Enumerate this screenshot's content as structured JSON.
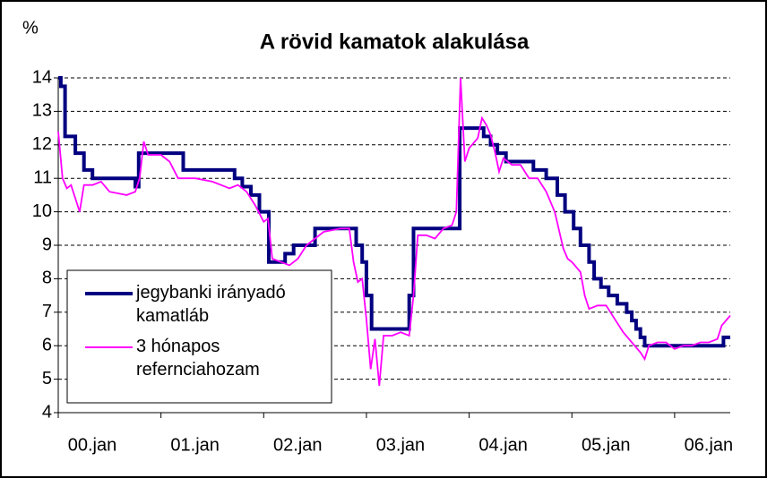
{
  "chart_data": {
    "type": "line",
    "title": "A rövid kamatok alakulása",
    "y_label": "%",
    "xlim": [
      0,
      78.5
    ],
    "xticks": [
      {
        "value": 0,
        "label": "00.jan"
      },
      {
        "value": 12,
        "label": "01.jan"
      },
      {
        "value": 24,
        "label": "02.jan"
      },
      {
        "value": 36,
        "label": "03.jan"
      },
      {
        "value": 48,
        "label": "04.jan"
      },
      {
        "value": 60,
        "label": "05.jan"
      },
      {
        "value": 72,
        "label": "06.jan"
      }
    ],
    "ylim": [
      4,
      14
    ],
    "yticks": [
      4,
      5,
      6,
      7,
      8,
      9,
      10,
      11,
      12,
      13,
      14
    ],
    "grid": true,
    "legend": "lower-left",
    "series": [
      {
        "name": "jegybanki irányadó kamatláb",
        "color": "#000080",
        "step": true,
        "x": [
          0,
          0.3,
          0.8,
          2,
          3,
          4,
          5,
          9,
          9.4,
          14.6,
          20.6,
          21.5,
          22.5,
          23.5,
          24.6,
          26.5,
          27.5,
          28.8,
          30,
          34.8,
          35.5,
          36,
          36.6,
          41,
          41.5,
          46.9,
          49.7,
          50.5,
          51.3,
          52.3,
          55.5,
          57,
          58.3,
          59.2,
          60.2,
          61,
          62,
          62.6,
          63.4,
          64.3,
          65.3,
          66.4,
          67,
          67.5,
          68,
          68.5,
          77.7,
          78.5
        ],
        "values": [
          14,
          13.75,
          12.25,
          11.75,
          11.25,
          11,
          11,
          10.75,
          11.75,
          11.25,
          11,
          10.75,
          10.5,
          10,
          8.5,
          8.75,
          9,
          9,
          9.5,
          9,
          8.5,
          7.5,
          6.5,
          7.5,
          9.5,
          12.5,
          12.25,
          12,
          11.75,
          11.5,
          11.25,
          11,
          10.5,
          10,
          9.5,
          9,
          8.5,
          8,
          7.75,
          7.5,
          7.25,
          7,
          6.75,
          6.5,
          6.25,
          6,
          6.25,
          6.25
        ]
      },
      {
        "name": "3 hónapos refernciahozam",
        "color": "#ff00ff",
        "x": [
          0,
          0.5,
          1,
          1.5,
          2.5,
          3,
          4,
          5,
          6,
          8,
          9,
          9.5,
          10,
          10.5,
          12,
          13,
          14,
          16,
          18,
          20,
          21,
          22,
          23,
          24,
          24.5,
          25,
          26,
          27,
          28,
          29,
          30,
          31,
          33,
          34,
          34.5,
          35,
          35.5,
          36,
          36.5,
          37,
          37.5,
          38,
          39,
          40,
          41,
          41.5,
          42,
          43,
          44,
          45,
          46,
          46.5,
          47,
          47.5,
          48,
          49,
          49.5,
          50,
          50.5,
          51,
          51.5,
          52,
          53,
          54,
          55,
          56,
          57,
          58,
          59,
          59.5,
          60,
          61,
          61.5,
          62,
          63,
          64,
          65,
          66,
          67,
          68,
          68.5,
          69,
          70,
          71,
          72,
          73,
          74,
          75,
          76,
          77,
          77.5,
          78.5
        ],
        "values": [
          12.4,
          11,
          10.7,
          10.8,
          10,
          10.8,
          10.8,
          10.9,
          10.6,
          10.5,
          10.6,
          11,
          12.1,
          11.7,
          11.7,
          11.5,
          11,
          11,
          10.9,
          10.7,
          10.8,
          10.6,
          10.2,
          9.7,
          9.8,
          8.6,
          8.5,
          8.4,
          8.6,
          9,
          9.2,
          9.4,
          9.5,
          9.5,
          8.5,
          7.9,
          8,
          6.8,
          5.3,
          6.2,
          4.8,
          6.3,
          6.3,
          6.4,
          6.3,
          7.5,
          9.3,
          9.3,
          9.2,
          9.5,
          9.6,
          10,
          14,
          11.5,
          11.9,
          12.2,
          12.8,
          12.6,
          12.3,
          11.8,
          11.2,
          11.6,
          11.4,
          11.4,
          11,
          11,
          10.6,
          10,
          8.9,
          8.6,
          8.5,
          8.2,
          7.5,
          7.1,
          7.2,
          7.2,
          6.8,
          6.4,
          6.1,
          5.8,
          5.6,
          6,
          6.1,
          6.1,
          5.9,
          6,
          6,
          6.1,
          6.1,
          6.2,
          6.6,
          6.9
        ]
      }
    ]
  }
}
